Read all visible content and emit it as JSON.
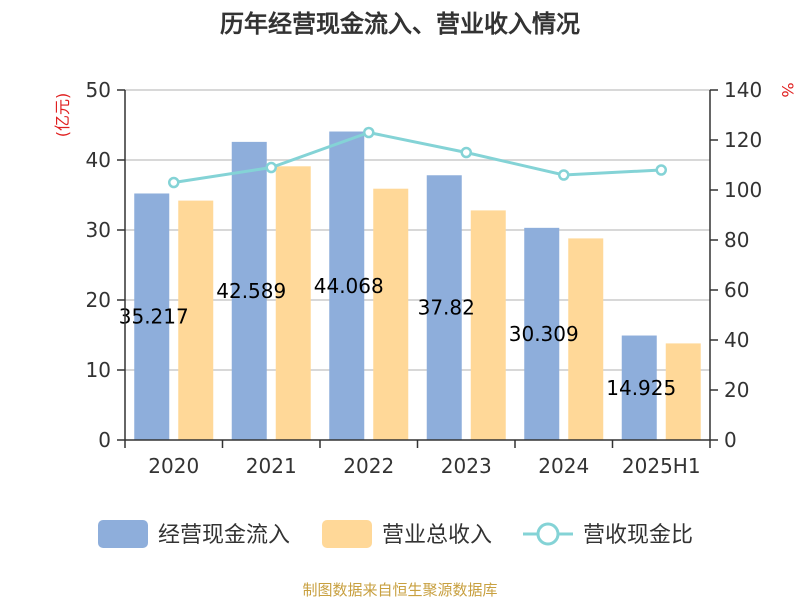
{
  "chart_data": {
    "type": "bar",
    "title": "历年经营现金流入、营业收入情况",
    "categories": [
      "2020",
      "2021",
      "2022",
      "2023",
      "2024",
      "2025H1"
    ],
    "series": [
      {
        "name": "经营现金流入",
        "axis": "left",
        "kind": "bar",
        "color": "#8eaedb",
        "values": [
          35.217,
          42.589,
          44.068,
          37.82,
          30.309,
          14.925
        ],
        "data_labels": [
          "35.217",
          "42.589",
          "44.068",
          "37.82",
          "30.309",
          "14.925"
        ]
      },
      {
        "name": "营业总收入",
        "axis": "left",
        "kind": "bar",
        "color": "#ffd898",
        "values": [
          34.2,
          39.1,
          35.9,
          32.8,
          28.8,
          13.8
        ]
      },
      {
        "name": "营收现金比",
        "axis": "right",
        "kind": "line",
        "color": "#84d3d6",
        "values": [
          103,
          109,
          123,
          115,
          106,
          108
        ]
      }
    ],
    "y_left": {
      "unit": "(亿元)",
      "ylim": [
        0,
        50
      ],
      "ticks": [
        "0",
        "10",
        "20",
        "30",
        "40",
        "50"
      ]
    },
    "y_right": {
      "unit": "%",
      "ylim": [
        0,
        140
      ],
      "ticks": [
        "0",
        "20",
        "40",
        "60",
        "80",
        "100",
        "120",
        "140"
      ]
    },
    "grid": true,
    "legend_position": "bottom",
    "unit_color": "#e02020"
  },
  "source_text": "制图数据来自恒生聚源数据库",
  "source_color": "#c8a040"
}
